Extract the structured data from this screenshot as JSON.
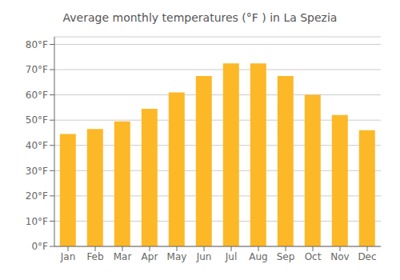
{
  "chart_data": {
    "type": "bar",
    "title": "Average monthly temperatures (°F ) in La Spezia",
    "categories": [
      "Jan",
      "Feb",
      "Mar",
      "Apr",
      "May",
      "Jun",
      "Jul",
      "Aug",
      "Sep",
      "Oct",
      "Nov",
      "Dec"
    ],
    "values": [
      44.5,
      46.5,
      49.5,
      54.5,
      61.0,
      67.5,
      72.5,
      72.5,
      67.5,
      60.0,
      52.0,
      46.0
    ],
    "color": "#FDB827",
    "ylim": [
      0,
      83
    ],
    "yticks": [
      {
        "value": 0,
        "label": "0°F"
      },
      {
        "value": 10,
        "label": "10°F"
      },
      {
        "value": 20,
        "label": "20°F"
      },
      {
        "value": 30,
        "label": "30°F"
      },
      {
        "value": 40,
        "label": "40°F"
      },
      {
        "value": 50,
        "label": "50°F"
      },
      {
        "value": 60,
        "label": "60°F"
      },
      {
        "value": 70,
        "label": "70°F"
      },
      {
        "value": 80,
        "label": "80°F"
      }
    ],
    "grid": true
  }
}
